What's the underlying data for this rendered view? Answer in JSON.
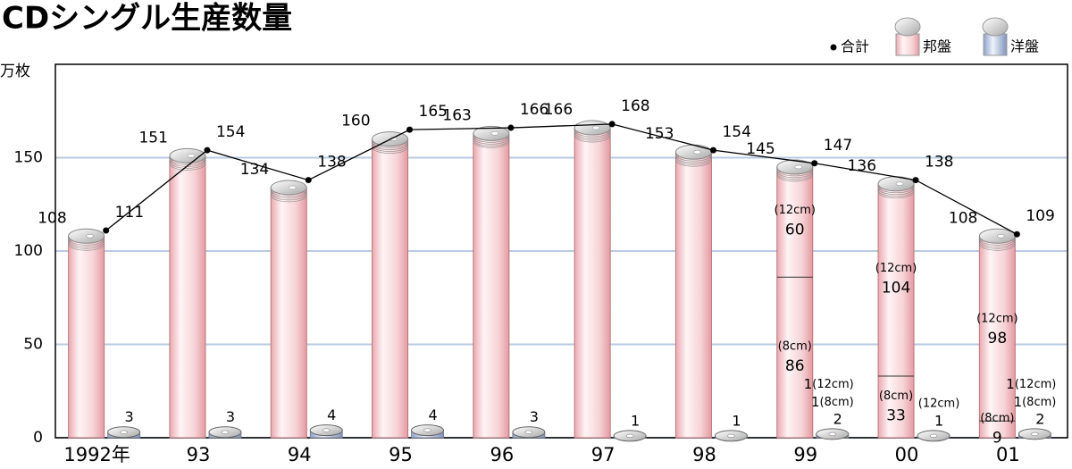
{
  "chart_data": {
    "type": "bar",
    "title": "CDシングル生産数量",
    "y_unit": "万枚",
    "categories": [
      "1992年",
      "93",
      "94",
      "95",
      "96",
      "97",
      "98",
      "99",
      "00",
      "01"
    ],
    "series": [
      {
        "name": "邦盤",
        "color": "#f6d3d6",
        "values": [
          108,
          151,
          134,
          160,
          163,
          166,
          153,
          145,
          136,
          108
        ]
      },
      {
        "name": "洋盤",
        "color": "#c9d3e6",
        "values": [
          3,
          3,
          4,
          4,
          3,
          1,
          1,
          2,
          1,
          2
        ]
      },
      {
        "name": "合計",
        "type": "line",
        "color": "#000000",
        "values": [
          111,
          154,
          138,
          165,
          166,
          168,
          154,
          147,
          138,
          109
        ]
      }
    ],
    "splits": [
      {
        "label": "(12cm)",
        "domestic": [
          null,
          null,
          null,
          null,
          null,
          null,
          null,
          60,
          104,
          98
        ],
        "foreign": [
          null,
          null,
          null,
          null,
          null,
          null,
          null,
          1,
          null,
          1
        ]
      },
      {
        "label": "(8cm)",
        "domestic": [
          null,
          null,
          null,
          null,
          null,
          null,
          null,
          86,
          33,
          9
        ],
        "foreign": [
          null,
          null,
          null,
          null,
          null,
          null,
          null,
          1,
          null,
          1
        ]
      }
    ],
    "foreign_size_notes": [
      null,
      null,
      null,
      null,
      null,
      null,
      null,
      null,
      "(12cm)",
      null
    ],
    "ylim": [
      0,
      200
    ],
    "yticks": [
      0,
      50,
      100,
      150
    ],
    "grid": true,
    "legend": "top-right"
  }
}
